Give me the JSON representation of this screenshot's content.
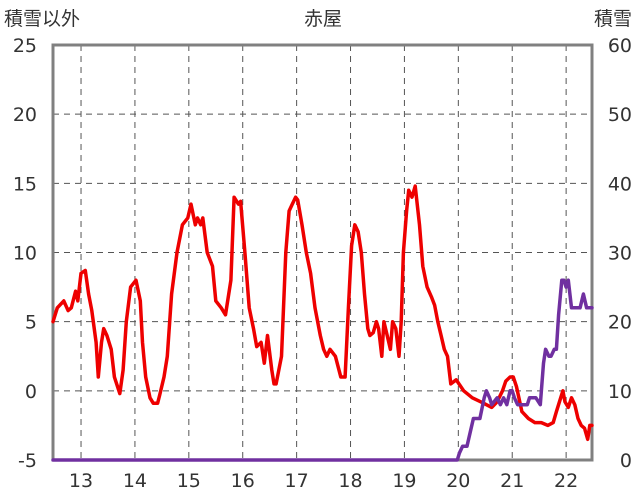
{
  "chart_data": {
    "type": "line",
    "title": "赤屋",
    "ylabel_left": "積雪以外",
    "ylabel_right": "積雪",
    "x_ticks": [
      "13",
      "14",
      "15",
      "16",
      "17",
      "18",
      "19",
      "20",
      "21",
      "22"
    ],
    "x_tick_values": [
      13,
      14,
      15,
      16,
      17,
      18,
      19,
      20,
      21,
      22
    ],
    "xlim": [
      12.48,
      22.48
    ],
    "ylim_left": [
      -5,
      25
    ],
    "ylim_right": [
      0,
      60
    ],
    "y_ticks_left": [
      "-5",
      "0",
      "5",
      "10",
      "15",
      "20",
      "25"
    ],
    "y_ticks_right": [
      "0",
      "10",
      "20",
      "30",
      "40",
      "50",
      "60"
    ],
    "grid": true,
    "series": [
      {
        "axis": "left",
        "color": "#ee0000",
        "x": [
          12.48,
          12.56,
          12.68,
          12.76,
          12.82,
          12.9,
          12.94,
          13.0,
          13.08,
          13.14,
          13.2,
          13.28,
          13.32,
          13.38,
          13.42,
          13.48,
          13.56,
          13.62,
          13.72,
          13.78,
          13.84,
          13.92,
          14.02,
          14.1,
          14.14,
          14.2,
          14.28,
          14.34,
          14.42,
          14.46,
          14.54,
          14.6,
          14.68,
          14.78,
          14.88,
          14.98,
          15.04,
          15.12,
          15.16,
          15.22,
          15.26,
          15.34,
          15.44,
          15.5,
          15.6,
          15.68,
          15.78,
          15.84,
          15.92,
          15.96,
          16.04,
          16.12,
          16.2,
          16.26,
          16.34,
          16.4,
          16.46,
          16.54,
          16.58,
          16.62,
          16.72,
          16.8,
          16.86,
          16.92,
          16.98,
          17.02,
          17.1,
          17.18,
          17.26,
          17.34,
          17.44,
          17.5,
          17.56,
          17.62,
          17.72,
          17.82,
          17.9,
          17.96,
          18.02,
          18.08,
          18.14,
          18.2,
          18.26,
          18.32,
          18.36,
          18.42,
          18.48,
          18.52,
          18.58,
          18.62,
          18.68,
          18.74,
          18.78,
          18.84,
          18.9,
          18.94,
          18.98,
          19.04,
          19.08,
          19.14,
          19.2,
          19.28,
          19.34,
          19.42,
          19.5,
          19.56,
          19.62,
          19.68,
          19.74,
          19.8,
          19.86,
          19.96,
          20.1,
          20.26,
          20.42,
          20.52,
          20.62,
          20.72,
          20.82,
          20.88,
          20.96,
          21.02,
          21.08,
          21.18,
          21.3,
          21.42,
          21.54,
          21.66,
          21.76,
          21.82,
          21.9,
          21.94,
          21.98,
          22.04,
          22.1,
          22.16,
          22.22,
          22.28,
          22.34,
          22.4,
          22.44,
          22.48
        ],
        "y": [
          5.0,
          6.0,
          6.5,
          5.8,
          6.0,
          7.2,
          6.5,
          8.5,
          8.7,
          7.0,
          5.8,
          3.5,
          1.0,
          3.5,
          4.5,
          4.0,
          3.0,
          1.0,
          -0.2,
          1.5,
          5.0,
          7.5,
          8.0,
          6.5,
          3.5,
          1.0,
          -0.5,
          -0.9,
          -0.9,
          -0.3,
          1.0,
          2.5,
          7.0,
          10.0,
          12.0,
          12.5,
          13.5,
          12.0,
          12.5,
          12.0,
          12.5,
          10.0,
          9.0,
          6.5,
          6.0,
          5.5,
          8.0,
          14.0,
          13.5,
          13.7,
          10.0,
          6.0,
          4.5,
          3.2,
          3.5,
          2.0,
          4.0,
          1.5,
          0.5,
          0.5,
          2.5,
          10.0,
          13.0,
          13.5,
          14.0,
          13.8,
          12.0,
          10.0,
          8.5,
          6.0,
          4.0,
          3.0,
          2.5,
          3.0,
          2.5,
          1.0,
          1.0,
          6.0,
          10.5,
          12.0,
          11.5,
          10.0,
          7.0,
          4.5,
          4.0,
          4.2,
          5.0,
          4.5,
          2.5,
          5.0,
          4.0,
          3.0,
          5.0,
          4.5,
          2.5,
          5.0,
          10.0,
          13.0,
          14.5,
          14.0,
          14.8,
          12.0,
          9.0,
          7.5,
          6.8,
          6.2,
          5.0,
          4.0,
          3.0,
          2.5,
          0.5,
          0.8,
          0.0,
          -0.5,
          -0.8,
          -1.0,
          -1.2,
          -0.8,
          0.0,
          0.7,
          1.0,
          1.0,
          0.3,
          -1.5,
          -2.0,
          -2.3,
          -2.3,
          -2.5,
          -2.3,
          -1.5,
          -0.5,
          0.0,
          -0.8,
          -1.2,
          -0.5,
          -1.0,
          -2.0,
          -2.5,
          -2.7,
          -3.5,
          -2.5,
          -2.5
        ]
      },
      {
        "axis": "right",
        "color": "#7030a0",
        "x": [
          12.48,
          19.98,
          20.02,
          20.08,
          20.16,
          20.22,
          20.28,
          20.4,
          20.48,
          20.52,
          20.58,
          20.62,
          20.72,
          20.78,
          20.84,
          20.9,
          20.96,
          21.0,
          21.04,
          21.1,
          21.2,
          21.28,
          21.32,
          21.44,
          21.52,
          21.58,
          21.62,
          21.68,
          21.72,
          21.78,
          21.82,
          21.86,
          21.92,
          21.96,
          22.0,
          22.04,
          22.1,
          22.2,
          22.26,
          22.32,
          22.38,
          22.48
        ],
        "y": [
          0,
          0,
          1,
          2,
          2,
          4,
          6,
          6,
          9,
          10,
          9,
          8,
          9,
          8,
          9,
          8,
          10,
          10,
          9,
          8,
          8,
          8,
          9,
          9,
          8,
          14,
          16,
          15,
          15,
          16,
          16,
          21,
          26,
          26,
          25,
          26,
          22,
          22,
          22,
          24,
          22,
          22
        ]
      }
    ]
  }
}
